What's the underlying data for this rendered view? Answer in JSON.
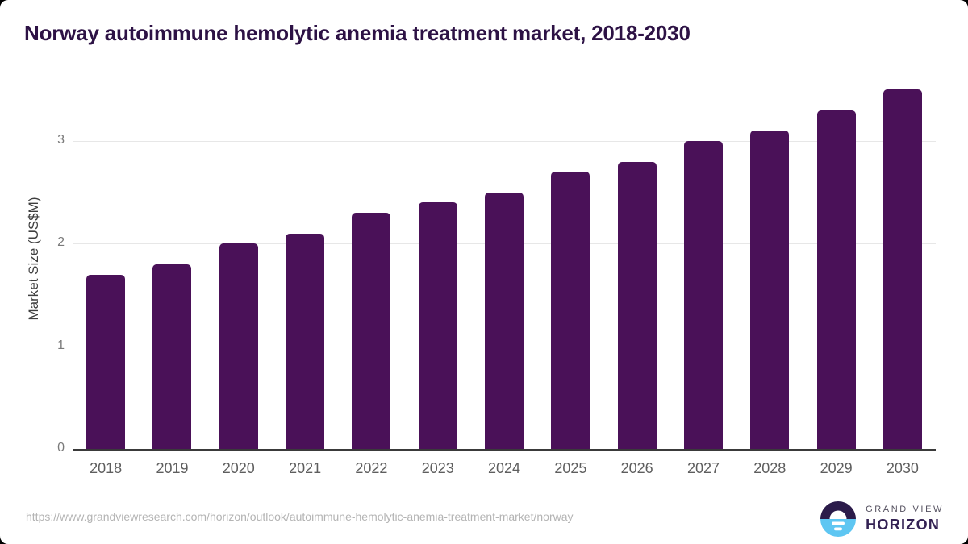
{
  "title": "Norway autoimmune hemolytic anemia treatment market, 2018-2030",
  "chart_data": {
    "type": "bar",
    "title": "Norway autoimmune hemolytic anemia treatment market, 2018-2030",
    "categories": [
      "2018",
      "2019",
      "2020",
      "2021",
      "2022",
      "2023",
      "2024",
      "2025",
      "2026",
      "2027",
      "2028",
      "2029",
      "2030"
    ],
    "values": [
      1.7,
      1.8,
      2.0,
      2.1,
      2.3,
      2.4,
      2.5,
      2.7,
      2.8,
      3.0,
      3.1,
      3.3,
      3.5
    ],
    "xlabel": "",
    "ylabel": "Market Size (US$M)",
    "ylim": [
      0,
      3.6
    ],
    "yticks": [
      0,
      1,
      2,
      3
    ],
    "grid": true,
    "legend": false,
    "bar_color": "#4a1158"
  },
  "colors": {
    "title_text": "#2d1245",
    "bar": "#4a1158",
    "gridline": "#e7e7e7",
    "axis_line": "#3a3a3a",
    "tick_text": "#5e5e5e",
    "url_text": "#b4b4b4",
    "logo_purple": "#2b1b4a",
    "logo_blue": "#5ec6f2"
  },
  "footer": {
    "source_url": "https://www.grandviewresearch.com/horizon/outlook/autoimmune-hemolytic-anemia-treatment-market/norway",
    "logo": {
      "line1": "GRAND VIEW",
      "line2": "HORIZON"
    }
  }
}
